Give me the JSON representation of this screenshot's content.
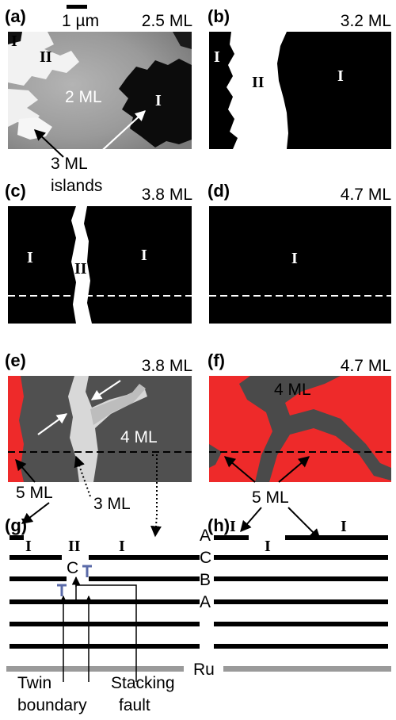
{
  "panels": {
    "a": {
      "label": "(a)",
      "coverage": "2.5 ML",
      "scalebar": "1 µm",
      "center_label": "2 ML",
      "phases": [
        "I",
        "II",
        "I"
      ],
      "annotation_line1": "3 ML",
      "annotation_line2": "islands"
    },
    "b": {
      "label": "(b)",
      "coverage": "3.2 ML",
      "phases": [
        "I",
        "II",
        "I"
      ]
    },
    "c": {
      "label": "(c)",
      "coverage": "3.8 ML",
      "phases": [
        "I",
        "II",
        "I"
      ]
    },
    "d": {
      "label": "(d)",
      "coverage": "4.7 ML",
      "phases": [
        "I"
      ]
    },
    "e": {
      "label": "(e)",
      "coverage": "3.8 ML",
      "center_label": "4 ML"
    },
    "f": {
      "label": "(f)",
      "coverage": "4.7 ML",
      "center_label": "4 ML"
    },
    "g": {
      "label": "(g)",
      "phases": [
        "I",
        "II",
        "I"
      ],
      "c_label": "C"
    },
    "h": {
      "label": "(h)",
      "phases": [
        "I",
        "I",
        "I"
      ]
    }
  },
  "annotations": {
    "five_ml_left": "5 ML",
    "three_ml": "3 ML",
    "five_ml_right": "5 ML"
  },
  "layers": [
    "A",
    "C",
    "B",
    "A"
  ],
  "substrate": "Ru",
  "defects": {
    "twin_line1": "Twin",
    "twin_line2": "boundary",
    "stacking_line1": "Stacking",
    "stacking_line2": "fault"
  },
  "colors": {
    "red_phase": "#ee2a2a",
    "dark_gray": "#4a4a4a",
    "substrate": "#9a9a9a",
    "dislocation": "#5a6aa8"
  }
}
